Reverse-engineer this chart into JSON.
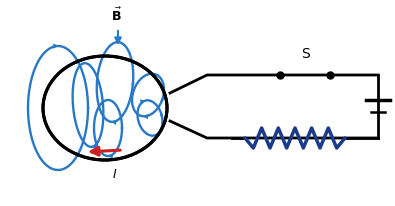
{
  "bg_color": "#ffffff",
  "wire_color": "#000000",
  "B_field_color": "#2878c8",
  "current_arrow_color": "#cc2222",
  "resistor_color": "#1a3a8a",
  "switch_dot_color": "#000000",
  "B_label": "$\\vec{\\mathbf{B}}$",
  "I_label": "$I$",
  "S_label": "S",
  "figw": 3.95,
  "figh": 2.06,
  "dpi": 100
}
